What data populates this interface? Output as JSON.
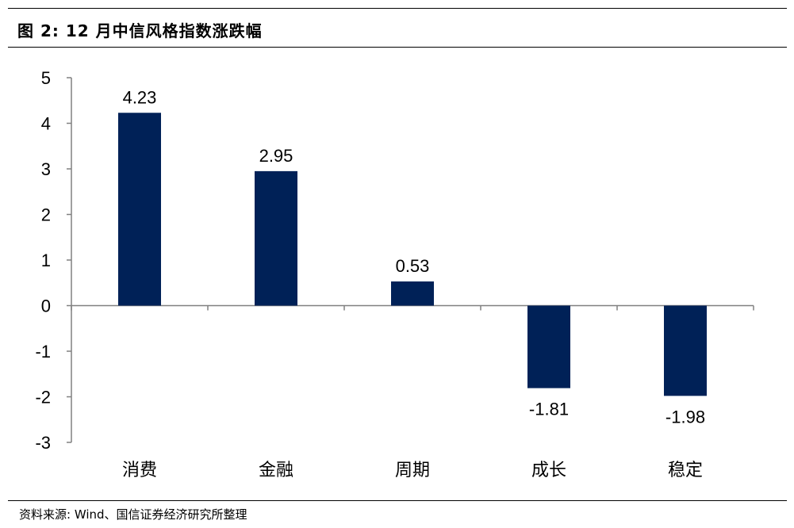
{
  "header": {
    "title": "图 2:  12 月中信风格指数涨跌幅"
  },
  "chart_data": {
    "type": "bar",
    "categories": [
      "消费",
      "金融",
      "周期",
      "成长",
      "稳定"
    ],
    "values": [
      4.23,
      2.95,
      0.53,
      -1.81,
      -1.98
    ],
    "data_labels": [
      "4.23",
      "2.95",
      "0.53",
      "-1.81",
      "-1.98"
    ],
    "ylim": [
      -3,
      5
    ],
    "yticks": [
      "-3",
      "-2",
      "-1",
      "0",
      "1",
      "2",
      "3",
      "4",
      "5"
    ],
    "bar_color": "#002157",
    "grid": false,
    "legend": "none"
  },
  "footer": {
    "source": "资料来源: Wind、国信证券经济研究所整理"
  }
}
